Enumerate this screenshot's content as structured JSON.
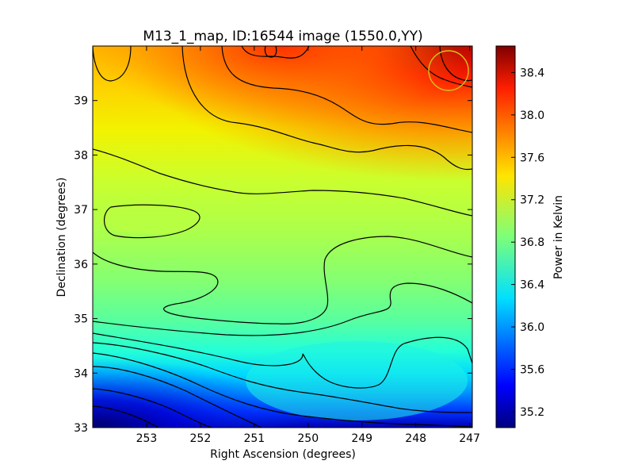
{
  "chart_data": {
    "type": "heatmap",
    "title": "M13_1_map, ID:16544 image (1550.0,YY)",
    "xlabel": "Right Ascension (degrees)",
    "ylabel": "Declination (degrees)",
    "colorbar_label": "Power in Kelvin",
    "colormap": "jet",
    "x_inverted": true,
    "xlim": [
      254.0,
      246.95
    ],
    "ylim": [
      33.0,
      40.0
    ],
    "x_ticks": [
      253,
      252,
      251,
      250,
      249,
      248,
      247
    ],
    "y_ticks": [
      33,
      34,
      35,
      36,
      37,
      38,
      39
    ],
    "colorbar_range": [
      35.05,
      38.65
    ],
    "colorbar_ticks": [
      "35.2",
      "35.6",
      "36.0",
      "36.4",
      "36.8",
      "37.2",
      "37.6",
      "38.0",
      "38.4"
    ],
    "contours": true,
    "beam_marker": {
      "ra": 247.45,
      "dec": 39.55,
      "color": "#d4c21e"
    }
  }
}
